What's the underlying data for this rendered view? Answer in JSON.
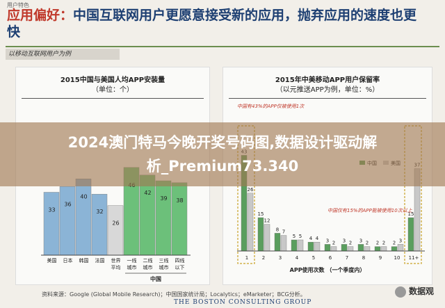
{
  "header": {
    "tag": "用户特色",
    "title_lead": "应用偏好：",
    "title_rest": "中国互联网用户更愿意接受新的应用，抛弃应用的速度也更快",
    "subtag": "以移动互联网用户为例"
  },
  "banner": {
    "line1": "2024澳门特马今晚开奖号码图,数据设计驱动解",
    "line2": "析_Premium73.340"
  },
  "footer": {
    "source": "资料来源：Google (Global Mobile Research)；中国国家统计局；Localytics；eMarketer；BCG分析。",
    "logo": "THE BOSTON CONSULTING GROUP",
    "watermark": "数据观"
  },
  "colors": {
    "title_blue": "#1d3f72",
    "title_red": "#c0392b",
    "bar_blue": "#8bb4d6",
    "bar_gray": "#d8d8d8",
    "bar_green": "#6cc07a",
    "retention_china": "#5a9e5e",
    "retention_us": "#c8c8c8"
  },
  "chart_data": [
    {
      "type": "bar",
      "title": "2015中国与美国人均APP安装量",
      "subtitle": "（单位：个）",
      "categories": [
        "美国",
        "日本",
        "韩国",
        "法国",
        "世界平均",
        "一线城市",
        "二线城市",
        "三线城市",
        "四线以下"
      ],
      "values": [
        33,
        36,
        40,
        32,
        26,
        46,
        42,
        39,
        38
      ],
      "group_label": "中国",
      "ylim": [
        0,
        70
      ]
    },
    {
      "type": "bar",
      "title": "2015年中美移动APP用户保留率",
      "subtitle": "（以元推送APP为例，单位：%）",
      "categories": [
        "1",
        "2",
        "3",
        "4",
        "5",
        "6",
        "7",
        "8",
        "9",
        "10",
        "11+"
      ],
      "series": [
        {
          "name": "中国",
          "values": [
            43,
            15,
            8,
            5,
            4,
            3,
            3,
            3,
            2,
            2,
            15
          ]
        },
        {
          "name": "美国",
          "values": [
            26,
            12,
            7,
            5,
            4,
            2,
            2,
            2,
            2,
            3,
            37
          ]
        }
      ],
      "xlabel": "APP使用次数 （一个季度内）",
      "annotations": [
        "中国有43%的APP仅被使用1次",
        "中国仅有15%的APP能被使用10次以上"
      ],
      "ylim": [
        0,
        55
      ]
    }
  ]
}
